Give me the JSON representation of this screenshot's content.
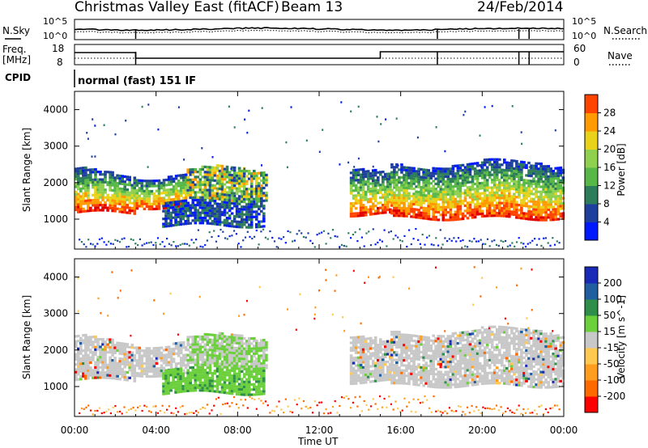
{
  "header": {
    "station": "Christmas Valley East (fitACF)",
    "beam": "Beam 13",
    "date": "24/Feb/2014"
  },
  "panel_labels": {
    "nsky": "N.Sky",
    "nsearch": "N.Search",
    "freq": "Freq.",
    "freq_unit": "[MHz]",
    "nave": "Nave",
    "cpid": "CPID",
    "cpid_value": "normal (fast) 151 IF"
  },
  "noise_ticks": {
    "left_top": "10^5",
    "left_bot": "10^0",
    "right_top": "10^5",
    "right_bot": "10^0"
  },
  "freq_ticks": {
    "left_top": "18",
    "left_bot": "8",
    "right_top": "60",
    "right_bot": "0"
  },
  "colors": {
    "power_scale": [
      "#0019ff",
      "#1f3f9e",
      "#2e7d5a",
      "#57b848",
      "#8fd14f",
      "#e8d21a",
      "#ff9a00",
      "#ff4400",
      "#e00000"
    ],
    "velocity_scale": [
      "#ff0000",
      "#ff6a00",
      "#ff9e1e",
      "#ffc850",
      "#c8c8c8",
      "#6ccf3c",
      "#2f8f4a",
      "#1f5fa0",
      "#1a2ab8"
    ],
    "ground_scatter": "#c8c8c8"
  },
  "chart_data": [
    {
      "type": "heatmap",
      "name": "power",
      "ylabel": "Slant Range [km]",
      "yticks": [
        "1000",
        "2000",
        "3000",
        "4000"
      ],
      "ylim": [
        180,
        4500
      ],
      "xlim_hours": [
        0,
        24
      ],
      "colorbar_label": "Power [dB]",
      "colorbar_ticks": [
        "4",
        "8",
        "12",
        "16",
        "20",
        "24",
        "28"
      ],
      "bands": [
        {
          "t0": 0.0,
          "t1": 3.0,
          "r0": 1150,
          "r1": 2250,
          "level": "strong"
        },
        {
          "t0": 3.0,
          "t1": 5.5,
          "r0": 1300,
          "r1": 2200,
          "level": "strong"
        },
        {
          "t0": 4.3,
          "t1": 9.3,
          "r0": 800,
          "r1": 1500,
          "level": "weak"
        },
        {
          "t0": 5.5,
          "t1": 9.4,
          "r0": 1500,
          "r1": 2300,
          "level": "medium"
        },
        {
          "t0": 13.5,
          "t1": 15.5,
          "r0": 1100,
          "r1": 2200,
          "level": "strong"
        },
        {
          "t0": 15.5,
          "t1": 24.0,
          "r0": 1000,
          "r1": 2500,
          "level": "strong"
        }
      ]
    },
    {
      "type": "heatmap",
      "name": "velocity",
      "ylabel": "Slant Range [km]",
      "yticks": [
        "1000",
        "2000",
        "3000",
        "4000"
      ],
      "ylim": [
        180,
        4500
      ],
      "xlim_hours": [
        0,
        24
      ],
      "xlabel": "Time UT",
      "xticks": [
        "00:00",
        "04:00",
        "08:00",
        "12:00",
        "16:00",
        "20:00",
        "00:00"
      ],
      "colorbar_label": "Velocity [m s^-1]",
      "colorbar_ticks": [
        "-200",
        "-100",
        "-50",
        "-15",
        "15",
        "50",
        "100",
        "200"
      ],
      "bands": [
        {
          "t0": 0.0,
          "t1": 3.0,
          "r0": 1150,
          "r1": 2250,
          "level": "ground"
        },
        {
          "t0": 3.0,
          "t1": 5.5,
          "r0": 1300,
          "r1": 2200,
          "level": "ground"
        },
        {
          "t0": 4.3,
          "t1": 9.3,
          "r0": 800,
          "r1": 1500,
          "level": "positive"
        },
        {
          "t0": 5.5,
          "t1": 9.4,
          "r0": 1500,
          "r1": 2300,
          "level": "mixed"
        },
        {
          "t0": 13.5,
          "t1": 15.5,
          "r0": 1100,
          "r1": 2200,
          "level": "ground"
        },
        {
          "t0": 15.5,
          "t1": 24.0,
          "r0": 1000,
          "r1": 2500,
          "level": "ground"
        }
      ]
    }
  ]
}
